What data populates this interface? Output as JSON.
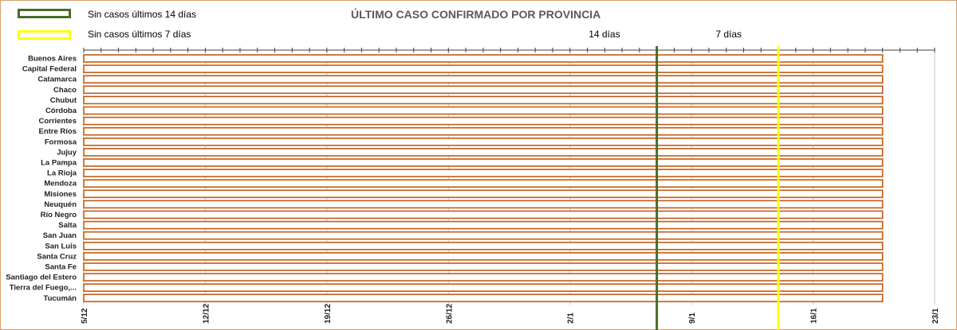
{
  "legend": [
    {
      "label": "Sin casos últimos 14 días",
      "color": "#4a6b2a"
    },
    {
      "label": "Sin casos últimos 7 días",
      "color": "#ffff00"
    }
  ],
  "chart_data": {
    "type": "bar",
    "title": "ÚLTIMO CASO CONFIRMADO POR PROVINCIA",
    "xlabel": "",
    "ylabel": "",
    "categories": [
      "Buenos Aires",
      "Capital Federal",
      "Catamarca",
      "Chaco",
      "Chubut",
      "Córdoba",
      "Corrientes",
      "Entre Ríos",
      "Formosa",
      "Jujuy",
      "La Pampa",
      "La Rioja",
      "Mendoza",
      "Misiones",
      "Neuquén",
      "Río Negro",
      "Salta",
      "San Juan",
      "San Luis",
      "Santa Cruz",
      "Santa Fe",
      "Santiago del Estero",
      "Tierra del Fuego,...",
      "Tucumán"
    ],
    "x_start": "5/12",
    "values": [
      "20/1",
      "20/1",
      "20/1",
      "20/1",
      "20/1",
      "20/1",
      "20/1",
      "20/1",
      "20/1",
      "20/1",
      "20/1",
      "20/1",
      "20/1",
      "20/1",
      "20/1",
      "20/1",
      "20/1",
      "20/1",
      "20/1",
      "20/1",
      "20/1",
      "20/1",
      "20/1",
      "20/1"
    ],
    "xticks": [
      "5/12",
      "12/12",
      "19/12",
      "26/12",
      "2/1",
      "9/1",
      "16/1",
      "23/1"
    ],
    "xlim": [
      "5/12",
      "23/1"
    ],
    "bar_color": "#c55a11",
    "reference_lines": [
      {
        "label": "14 días",
        "date": "7/1",
        "color": "#4a6b2a"
      },
      {
        "label": "7 días",
        "date": "14/1",
        "color": "#ffff00"
      }
    ],
    "grid": true
  }
}
